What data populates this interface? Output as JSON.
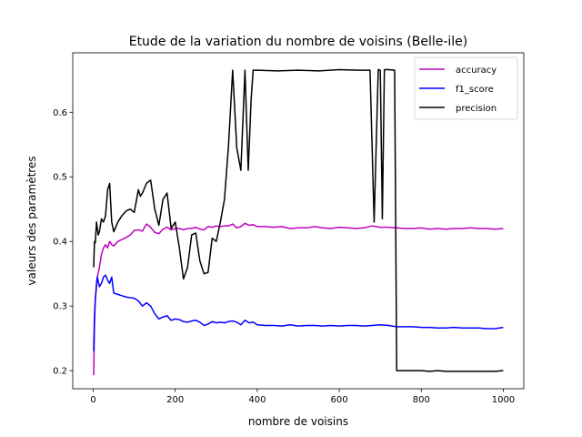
{
  "chart_data": {
    "type": "line",
    "title": "Etude de la variation du nombre de voisins (Belle-ile)",
    "xlabel": "nombre de voisins",
    "ylabel": "valeurs des paramètres",
    "xlim": [
      -50,
      1050
    ],
    "ylim": [
      0.172,
      0.692
    ],
    "xticks": [
      0,
      200,
      400,
      600,
      800,
      1000
    ],
    "yticks": [
      0.2,
      0.3,
      0.4,
      0.5,
      0.6
    ],
    "xtick_labels": [
      "0",
      "200",
      "400",
      "600",
      "800",
      "1000"
    ],
    "ytick_labels": [
      "0.2",
      "0.3",
      "0.4",
      "0.5",
      "0.6"
    ],
    "grid": false,
    "legend_position": "top-right",
    "series": [
      {
        "name": "accuracy",
        "color": "#bf00bf",
        "points": [
          [
            1,
            0.193
          ],
          [
            3,
            0.27
          ],
          [
            5,
            0.31
          ],
          [
            10,
            0.345
          ],
          [
            15,
            0.36
          ],
          [
            20,
            0.38
          ],
          [
            25,
            0.39
          ],
          [
            30,
            0.395
          ],
          [
            35,
            0.39
          ],
          [
            40,
            0.4
          ],
          [
            45,
            0.395
          ],
          [
            50,
            0.393
          ],
          [
            60,
            0.4
          ],
          [
            70,
            0.403
          ],
          [
            80,
            0.406
          ],
          [
            90,
            0.41
          ],
          [
            100,
            0.417
          ],
          [
            110,
            0.418
          ],
          [
            120,
            0.416
          ],
          [
            130,
            0.427
          ],
          [
            140,
            0.422
          ],
          [
            150,
            0.414
          ],
          [
            160,
            0.412
          ],
          [
            170,
            0.419
          ],
          [
            180,
            0.422
          ],
          [
            190,
            0.418
          ],
          [
            200,
            0.42
          ],
          [
            210,
            0.42
          ],
          [
            220,
            0.418
          ],
          [
            230,
            0.42
          ],
          [
            240,
            0.42
          ],
          [
            250,
            0.422
          ],
          [
            260,
            0.419
          ],
          [
            270,
            0.418
          ],
          [
            280,
            0.423
          ],
          [
            290,
            0.422
          ],
          [
            300,
            0.424
          ],
          [
            310,
            0.423
          ],
          [
            320,
            0.424
          ],
          [
            330,
            0.424
          ],
          [
            340,
            0.427
          ],
          [
            350,
            0.421
          ],
          [
            360,
            0.423
          ],
          [
            370,
            0.428
          ],
          [
            380,
            0.425
          ],
          [
            390,
            0.426
          ],
          [
            400,
            0.423
          ],
          [
            420,
            0.423
          ],
          [
            440,
            0.422
          ],
          [
            460,
            0.423
          ],
          [
            480,
            0.42
          ],
          [
            500,
            0.421
          ],
          [
            520,
            0.421
          ],
          [
            540,
            0.423
          ],
          [
            560,
            0.421
          ],
          [
            580,
            0.42
          ],
          [
            600,
            0.422
          ],
          [
            620,
            0.421
          ],
          [
            640,
            0.42
          ],
          [
            660,
            0.421
          ],
          [
            680,
            0.424
          ],
          [
            700,
            0.422
          ],
          [
            720,
            0.422
          ],
          [
            740,
            0.421
          ],
          [
            760,
            0.42
          ],
          [
            780,
            0.42
          ],
          [
            800,
            0.421
          ],
          [
            820,
            0.419
          ],
          [
            840,
            0.42
          ],
          [
            860,
            0.419
          ],
          [
            880,
            0.42
          ],
          [
            900,
            0.42
          ],
          [
            920,
            0.421
          ],
          [
            940,
            0.42
          ],
          [
            960,
            0.42
          ],
          [
            980,
            0.419
          ],
          [
            1000,
            0.42
          ]
        ]
      },
      {
        "name": "f1_score",
        "color": "#0000ff",
        "points": [
          [
            1,
            0.23
          ],
          [
            3,
            0.285
          ],
          [
            5,
            0.31
          ],
          [
            8,
            0.335
          ],
          [
            10,
            0.345
          ],
          [
            15,
            0.33
          ],
          [
            20,
            0.335
          ],
          [
            25,
            0.345
          ],
          [
            30,
            0.348
          ],
          [
            35,
            0.34
          ],
          [
            40,
            0.335
          ],
          [
            45,
            0.345
          ],
          [
            50,
            0.32
          ],
          [
            60,
            0.318
          ],
          [
            70,
            0.316
          ],
          [
            80,
            0.314
          ],
          [
            90,
            0.313
          ],
          [
            100,
            0.312
          ],
          [
            110,
            0.308
          ],
          [
            120,
            0.3
          ],
          [
            130,
            0.305
          ],
          [
            140,
            0.3
          ],
          [
            150,
            0.288
          ],
          [
            160,
            0.28
          ],
          [
            170,
            0.283
          ],
          [
            180,
            0.285
          ],
          [
            190,
            0.278
          ],
          [
            200,
            0.28
          ],
          [
            210,
            0.279
          ],
          [
            220,
            0.276
          ],
          [
            230,
            0.275
          ],
          [
            240,
            0.277
          ],
          [
            250,
            0.278
          ],
          [
            260,
            0.275
          ],
          [
            270,
            0.27
          ],
          [
            280,
            0.272
          ],
          [
            290,
            0.276
          ],
          [
            300,
            0.274
          ],
          [
            310,
            0.275
          ],
          [
            320,
            0.274
          ],
          [
            330,
            0.276
          ],
          [
            340,
            0.277
          ],
          [
            350,
            0.275
          ],
          [
            360,
            0.271
          ],
          [
            370,
            0.278
          ],
          [
            380,
            0.274
          ],
          [
            390,
            0.275
          ],
          [
            400,
            0.271
          ],
          [
            420,
            0.27
          ],
          [
            440,
            0.27
          ],
          [
            460,
            0.269
          ],
          [
            480,
            0.271
          ],
          [
            500,
            0.269
          ],
          [
            520,
            0.27
          ],
          [
            540,
            0.27
          ],
          [
            560,
            0.269
          ],
          [
            580,
            0.27
          ],
          [
            600,
            0.269
          ],
          [
            620,
            0.27
          ],
          [
            640,
            0.27
          ],
          [
            660,
            0.269
          ],
          [
            680,
            0.27
          ],
          [
            700,
            0.271
          ],
          [
            720,
            0.27
          ],
          [
            740,
            0.268
          ],
          [
            760,
            0.268
          ],
          [
            780,
            0.268
          ],
          [
            800,
            0.267
          ],
          [
            820,
            0.267
          ],
          [
            840,
            0.266
          ],
          [
            860,
            0.266
          ],
          [
            880,
            0.267
          ],
          [
            900,
            0.266
          ],
          [
            920,
            0.266
          ],
          [
            940,
            0.266
          ],
          [
            960,
            0.265
          ],
          [
            980,
            0.265
          ],
          [
            1000,
            0.267
          ]
        ]
      },
      {
        "name": "precision",
        "color": "#000000",
        "points": [
          [
            1,
            0.36
          ],
          [
            3,
            0.4
          ],
          [
            5,
            0.398
          ],
          [
            8,
            0.43
          ],
          [
            12,
            0.41
          ],
          [
            15,
            0.415
          ],
          [
            20,
            0.435
          ],
          [
            25,
            0.43
          ],
          [
            30,
            0.44
          ],
          [
            35,
            0.48
          ],
          [
            40,
            0.49
          ],
          [
            45,
            0.43
          ],
          [
            50,
            0.415
          ],
          [
            60,
            0.43
          ],
          [
            70,
            0.44
          ],
          [
            80,
            0.447
          ],
          [
            90,
            0.45
          ],
          [
            100,
            0.445
          ],
          [
            110,
            0.48
          ],
          [
            115,
            0.47
          ],
          [
            120,
            0.475
          ],
          [
            130,
            0.49
          ],
          [
            140,
            0.495
          ],
          [
            150,
            0.45
          ],
          [
            160,
            0.425
          ],
          [
            170,
            0.465
          ],
          [
            180,
            0.475
          ],
          [
            190,
            0.42
          ],
          [
            200,
            0.43
          ],
          [
            210,
            0.39
          ],
          [
            220,
            0.342
          ],
          [
            230,
            0.36
          ],
          [
            240,
            0.41
          ],
          [
            250,
            0.413
          ],
          [
            260,
            0.37
          ],
          [
            270,
            0.35
          ],
          [
            280,
            0.352
          ],
          [
            290,
            0.405
          ],
          [
            300,
            0.4
          ],
          [
            310,
            0.43
          ],
          [
            320,
            0.465
          ],
          [
            330,
            0.55
          ],
          [
            340,
            0.665
          ],
          [
            350,
            0.545
          ],
          [
            360,
            0.51
          ],
          [
            370,
            0.665
          ],
          [
            378,
            0.51
          ],
          [
            385,
            0.62
          ],
          [
            390,
            0.665
          ],
          [
            400,
            0.665
          ],
          [
            450,
            0.664
          ],
          [
            500,
            0.665
          ],
          [
            550,
            0.664
          ],
          [
            600,
            0.666
          ],
          [
            650,
            0.665
          ],
          [
            675,
            0.665
          ],
          [
            685,
            0.43
          ],
          [
            695,
            0.666
          ],
          [
            700,
            0.665
          ],
          [
            705,
            0.435
          ],
          [
            710,
            0.666
          ],
          [
            720,
            0.666
          ],
          [
            735,
            0.665
          ],
          [
            740,
            0.2
          ],
          [
            760,
            0.2
          ],
          [
            780,
            0.2
          ],
          [
            800,
            0.2
          ],
          [
            820,
            0.199
          ],
          [
            840,
            0.2
          ],
          [
            860,
            0.199
          ],
          [
            880,
            0.199
          ],
          [
            900,
            0.199
          ],
          [
            920,
            0.199
          ],
          [
            940,
            0.199
          ],
          [
            960,
            0.199
          ],
          [
            980,
            0.199
          ],
          [
            1000,
            0.2
          ]
        ]
      }
    ]
  }
}
